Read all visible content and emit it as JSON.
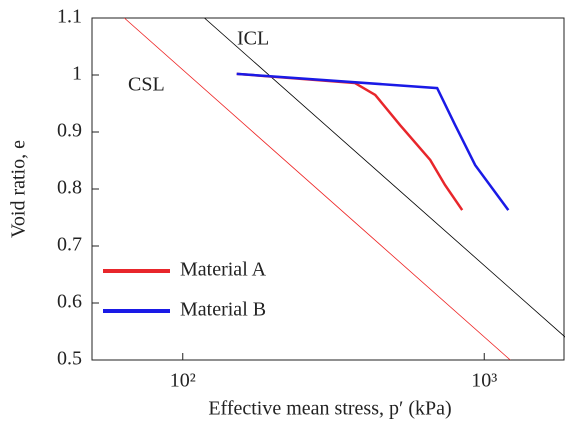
{
  "chart_data": {
    "type": "line",
    "xlabel": "Effective mean stress, p′ (kPa)",
    "ylabel": "Void ratio, e",
    "xlim": [
      50,
      2000
    ],
    "ylim": [
      0.5,
      1.1
    ],
    "xscale": "log",
    "xticks": [
      {
        "value": 100,
        "label": "10²"
      },
      {
        "value": 1000,
        "label": "10³"
      }
    ],
    "yticks": [
      0.5,
      0.6,
      0.7,
      0.8,
      0.9,
      1,
      1.1
    ],
    "legend": "lower left",
    "reference_lines": [
      {
        "label": "ICL",
        "color": "#000000",
        "x": [
          118,
          2000
        ],
        "values": [
          1.1,
          0.525
        ]
      },
      {
        "label": "CSL",
        "color": "#ee2222",
        "x": [
          64,
          1220
        ],
        "values": [
          1.1,
          0.5
        ]
      }
    ],
    "series": [
      {
        "name": "Material A",
        "color": "#e8262b",
        "x": [
          151,
          372,
          435,
          526,
          662,
          741,
          845
        ],
        "values": [
          1.002,
          0.986,
          0.965,
          0.912,
          0.851,
          0.807,
          0.763
        ]
      },
      {
        "name": "Material B",
        "color": "#1a1ae6",
        "x": [
          151,
          698,
          801,
          933,
          1202
        ],
        "values": [
          1.002,
          0.977,
          0.912,
          0.842,
          0.763
        ]
      }
    ]
  }
}
